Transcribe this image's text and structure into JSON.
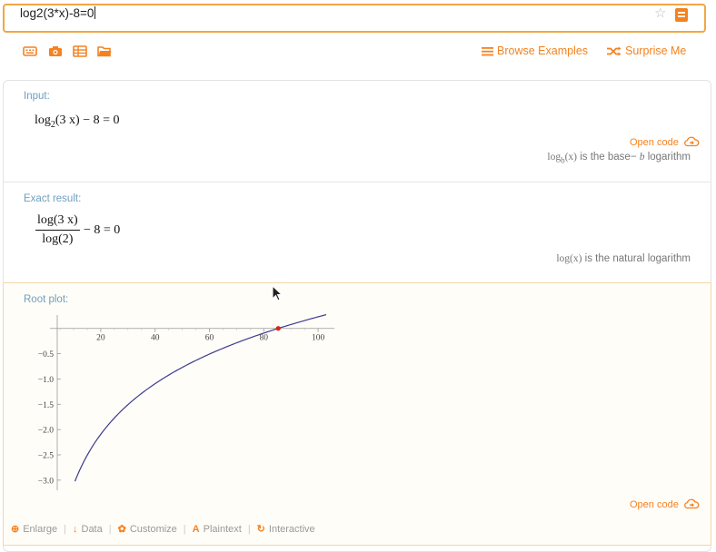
{
  "search": {
    "value": "log2(3*x)-8=0"
  },
  "toolbar": {
    "icons": [
      "keyboard-icon",
      "camera-icon",
      "table-icon",
      "folder-icon"
    ],
    "browse_examples": "Browse Examples",
    "surprise_me": "Surprise Me"
  },
  "pods": {
    "input": {
      "title": "Input:",
      "expr_log": "log",
      "expr_sub": "2",
      "expr_rest": "(3 x) − 8 = 0",
      "open_code": "Open code",
      "note_pre": "log",
      "note_sub": "b",
      "note_arg": "(x)",
      "note_mid": " is the base− ",
      "note_b": "b",
      "note_end": " logarithm"
    },
    "exact": {
      "title": "Exact result:",
      "numerator": "log(3 x)",
      "denominator": "log(2)",
      "rest": "− 8 = 0",
      "note_math": "log(x)",
      "note_text": " is the natural logarithm"
    },
    "root_plot": {
      "title": "Root plot:",
      "open_code": "Open code"
    }
  },
  "actions": {
    "enlarge": "Enlarge",
    "data": "Data",
    "customize": "Customize",
    "plaintext": "Plaintext",
    "interactive": "Interactive"
  },
  "colors": {
    "accent": "#f58220",
    "curve": "#3b3b8f",
    "root": "#e0201b",
    "pod_title": "#6fa0c0"
  },
  "chart_data": {
    "type": "line",
    "function": "log2(3x) - 8",
    "x_ticks": [
      20,
      40,
      60,
      80,
      100
    ],
    "y_ticks": [
      -0.5,
      -1.0,
      -1.5,
      -2.0,
      -2.5,
      -3.0
    ],
    "x_tick_labels": [
      "20",
      "40",
      "60",
      "80",
      "100"
    ],
    "y_tick_labels": [
      "−0.5",
      "−1.0",
      "−1.5",
      "−2.0",
      "−2.5",
      "−3.0"
    ],
    "xlim": [
      1.3,
      106
    ],
    "ylim": [
      -3.2,
      0.3
    ],
    "x_range": [
      10.5,
      103
    ],
    "root": {
      "x": 85.33,
      "y": 0
    },
    "grid": false
  }
}
